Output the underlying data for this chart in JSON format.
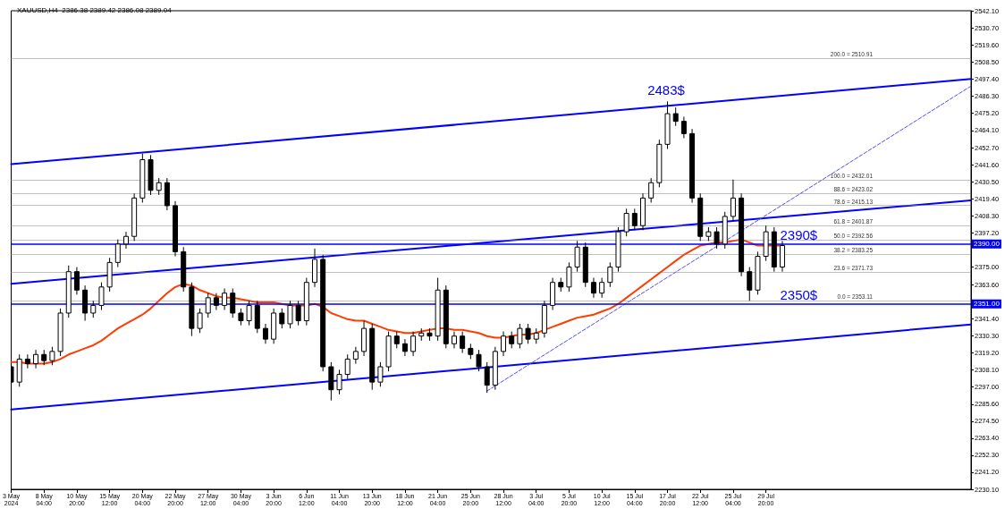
{
  "chart_data": {
    "type": "candlestick",
    "title": "XAUUSD,H4  2386.38 2389.42 2386.08 2389.04",
    "categories": [
      "3 May 2024",
      null,
      null,
      null,
      "8 May 04:00",
      null,
      null,
      null,
      "10 May 20:00",
      null,
      null,
      null,
      "15 May 12:00",
      null,
      null,
      null,
      "20 May 04:00",
      null,
      null,
      null,
      "22 May 20:00",
      null,
      null,
      null,
      "27 May 12:00",
      null,
      null,
      null,
      "30 May 04:00",
      null,
      null,
      null,
      "3 Jun 20:00",
      null,
      null,
      null,
      "6 Jun 12:00",
      null,
      null,
      null,
      "11 Jun 04:00",
      null,
      null,
      null,
      "13 Jun 20:00",
      null,
      null,
      null,
      "18 Jun 12:00",
      null,
      null,
      null,
      "21 Jun 04:00",
      null,
      null,
      null,
      "25 Jun 20:00",
      null,
      null,
      null,
      "28 Jun 12:00",
      null,
      null,
      null,
      "3 Jul 04:00",
      null,
      null,
      null,
      "5 Jul 20:00",
      null,
      null,
      null,
      "10 Jul 12:00",
      null,
      null,
      null,
      "15 Jul 04:00",
      null,
      null,
      null,
      "17 Jul 20:00",
      null,
      null,
      null,
      "22 Jul 12:00",
      null,
      null,
      null,
      "25 Jul 04:00",
      null,
      null,
      null,
      "29 Jul 20:00",
      null,
      null,
      null,
      null,
      null,
      null,
      null,
      null,
      null,
      null,
      null,
      null,
      null,
      null,
      null,
      null,
      null,
      null,
      null,
      null,
      null,
      null,
      null,
      null,
      null
    ],
    "ylim": [
      2230.1,
      2542.1
    ],
    "yticks": [
      {
        "value": 2230.1,
        "label": "2230.10"
      },
      {
        "value": 2241.2,
        "label": "2241.20"
      },
      {
        "value": 2252.3,
        "label": "2252.30"
      },
      {
        "value": 2263.4,
        "label": "2263.40"
      },
      {
        "value": 2274.5,
        "label": "2274.50"
      },
      {
        "value": 2285.6,
        "label": "2285.60"
      },
      {
        "value": 2297,
        "label": "2297.00"
      },
      {
        "value": 2308.1,
        "label": "2308.10"
      },
      {
        "value": 2319.2,
        "label": "2319.20"
      },
      {
        "value": 2330.3,
        "label": "2330.30"
      },
      {
        "value": 2341.4,
        "label": "2341.40"
      },
      {
        "value": 2363.6,
        "label": "2363.60"
      },
      {
        "value": 2375,
        "label": "2375.00"
      },
      {
        "value": 2397.2,
        "label": "2397.20"
      },
      {
        "value": 2408.3,
        "label": "2408.30"
      },
      {
        "value": 2419.4,
        "label": "2419.40"
      },
      {
        "value": 2430.5,
        "label": "2430.50"
      },
      {
        "value": 2441.6,
        "label": "2441.60"
      },
      {
        "value": 2452.7,
        "label": "2452.70"
      },
      {
        "value": 2464.1,
        "label": "2464.10"
      },
      {
        "value": 2475.2,
        "label": "2475.20"
      },
      {
        "value": 2486.3,
        "label": "2486.30"
      },
      {
        "value": 2497.4,
        "label": "2497.40"
      },
      {
        "value": 2508.5,
        "label": "2508.50"
      },
      {
        "value": 2519.6,
        "label": "2519.60"
      },
      {
        "value": 2530.7,
        "label": "2530.70"
      },
      {
        "value": 2542.1,
        "label": "2542.10"
      }
    ],
    "series": [
      {
        "color": "#000000",
        "ohlc": [
          [
            2310,
            2312,
            2282,
            2300
          ],
          [
            2300,
            2318,
            2297,
            2315
          ],
          [
            2315,
            2318,
            2309,
            2312
          ],
          [
            2312,
            2321,
            2309,
            2318
          ],
          [
            2318,
            2321,
            2311,
            2314
          ],
          [
            2314,
            2323,
            2311,
            2320
          ],
          [
            2320,
            2348,
            2317,
            2345
          ],
          [
            2345,
            2376,
            2342,
            2372
          ],
          [
            2372,
            2375,
            2357,
            2360
          ],
          [
            2360,
            2363,
            2340,
            2345
          ],
          [
            2345,
            2353,
            2342,
            2350
          ],
          [
            2350,
            2365,
            2347,
            2362
          ],
          [
            2362,
            2381,
            2359,
            2378
          ],
          [
            2378,
            2393,
            2375,
            2390
          ],
          [
            2390,
            2398,
            2387,
            2395
          ],
          [
            2395,
            2423,
            2392,
            2420
          ],
          [
            2420,
            2449,
            2417,
            2445
          ],
          [
            2445,
            2448,
            2422,
            2425
          ],
          [
            2425,
            2433,
            2422,
            2430
          ],
          [
            2430,
            2433,
            2412,
            2415
          ],
          [
            2415,
            2418,
            2382,
            2385
          ],
          [
            2385,
            2388,
            2359,
            2362
          ],
          [
            2362,
            2365,
            2330,
            2335
          ],
          [
            2335,
            2348,
            2332,
            2345
          ],
          [
            2345,
            2358,
            2342,
            2355
          ],
          [
            2355,
            2358,
            2347,
            2350
          ],
          [
            2350,
            2361,
            2347,
            2358
          ],
          [
            2358,
            2361,
            2342,
            2345
          ],
          [
            2345,
            2348,
            2337,
            2340
          ],
          [
            2340,
            2353,
            2337,
            2350
          ],
          [
            2350,
            2353,
            2332,
            2335
          ],
          [
            2335,
            2338,
            2325,
            2328
          ],
          [
            2328,
            2348,
            2325,
            2345
          ],
          [
            2345,
            2348,
            2335,
            2338
          ],
          [
            2338,
            2353,
            2335,
            2350
          ],
          [
            2350,
            2353,
            2337,
            2340
          ],
          [
            2340,
            2368,
            2337,
            2365
          ],
          [
            2365,
            2387,
            2362,
            2380
          ],
          [
            2380,
            2383,
            2307,
            2310
          ],
          [
            2310,
            2313,
            2288,
            2295
          ],
          [
            2295,
            2308,
            2292,
            2305
          ],
          [
            2305,
            2318,
            2302,
            2315
          ],
          [
            2315,
            2323,
            2312,
            2320
          ],
          [
            2320,
            2340,
            2317,
            2335
          ],
          [
            2335,
            2338,
            2295,
            2300
          ],
          [
            2300,
            2313,
            2297,
            2310
          ],
          [
            2310,
            2333,
            2307,
            2330
          ],
          [
            2330,
            2333,
            2322,
            2325
          ],
          [
            2325,
            2328,
            2317,
            2320
          ],
          [
            2320,
            2333,
            2317,
            2330
          ],
          [
            2330,
            2335,
            2327,
            2332
          ],
          [
            2332,
            2335,
            2327,
            2330
          ],
          [
            2330,
            2368,
            2327,
            2360
          ],
          [
            2360,
            2363,
            2322,
            2325
          ],
          [
            2325,
            2333,
            2322,
            2330
          ],
          [
            2330,
            2333,
            2319,
            2322
          ],
          [
            2322,
            2325,
            2315,
            2318
          ],
          [
            2318,
            2321,
            2307,
            2310
          ],
          [
            2310,
            2313,
            2293,
            2298
          ],
          [
            2298,
            2323,
            2295,
            2320
          ],
          [
            2320,
            2333,
            2317,
            2330
          ],
          [
            2330,
            2333,
            2322,
            2325
          ],
          [
            2325,
            2338,
            2322,
            2335
          ],
          [
            2335,
            2338,
            2325,
            2328
          ],
          [
            2328,
            2335,
            2325,
            2332
          ],
          [
            2332,
            2353,
            2329,
            2350
          ],
          [
            2350,
            2368,
            2347,
            2365
          ],
          [
            2365,
            2368,
            2359,
            2362
          ],
          [
            2362,
            2378,
            2359,
            2375
          ],
          [
            2375,
            2392,
            2372,
            2388
          ],
          [
            2388,
            2391,
            2362,
            2365
          ],
          [
            2365,
            2368,
            2355,
            2358
          ],
          [
            2358,
            2368,
            2355,
            2365
          ],
          [
            2365,
            2378,
            2362,
            2375
          ],
          [
            2375,
            2401,
            2372,
            2398
          ],
          [
            2398,
            2413,
            2395,
            2410
          ],
          [
            2410,
            2413,
            2399,
            2402
          ],
          [
            2402,
            2423,
            2399,
            2420
          ],
          [
            2420,
            2433,
            2417,
            2430
          ],
          [
            2430,
            2458,
            2427,
            2455
          ],
          [
            2455,
            2483,
            2452,
            2475
          ],
          [
            2475,
            2479,
            2467,
            2470
          ],
          [
            2470,
            2473,
            2459,
            2462
          ],
          [
            2462,
            2465,
            2417,
            2420
          ],
          [
            2420,
            2423,
            2392,
            2395
          ],
          [
            2395,
            2401,
            2392,
            2398
          ],
          [
            2398,
            2401,
            2387,
            2390
          ],
          [
            2390,
            2411,
            2387,
            2408
          ],
          [
            2408,
            2432,
            2405,
            2420
          ],
          [
            2420,
            2423,
            2369,
            2372
          ],
          [
            2372,
            2375,
            2353,
            2360
          ],
          [
            2360,
            2385,
            2357,
            2382
          ],
          [
            2382,
            2402,
            2379,
            2398
          ],
          [
            2398,
            2401,
            2372,
            2375
          ],
          [
            2375,
            2392,
            2372,
            2389
          ],
          null,
          null,
          null,
          null,
          null,
          null,
          null,
          null,
          null,
          null,
          null,
          null,
          null,
          null,
          null,
          null,
          null,
          null,
          null,
          null,
          null,
          null,
          null
        ]
      },
      {
        "type": "line",
        "color": "#ff3c00",
        "values": [
          2313,
          2313,
          2312,
          2312,
          2312,
          2313,
          2315,
          2318,
          2320,
          2322,
          2324,
          2327,
          2331,
          2335,
          2338,
          2341,
          2344,
          2348,
          2353,
          2358,
          2362,
          2364,
          2363,
          2360,
          2358,
          2356,
          2355,
          2355,
          2354,
          2353,
          2352,
          2352,
          2352,
          2351,
          2350,
          2350,
          2350,
          2351,
          2349,
          2345,
          2343,
          2341,
          2340,
          2340,
          2338,
          2336,
          2334,
          2333,
          2332,
          2332,
          2333,
          2334,
          2335,
          2335,
          2334,
          2334,
          2333,
          2332,
          2330,
          2329,
          2329,
          2330,
          2331,
          2331,
          2332,
          2334,
          2336,
          2338,
          2340,
          2342,
          2343,
          2344,
          2346,
          2348,
          2351,
          2355,
          2359,
          2363,
          2367,
          2371,
          2375,
          2379,
          2383,
          2386,
          2389,
          2390,
          2391,
          2391,
          2392,
          2393,
          2391,
          2389,
          2389,
          2389,
          2389,
          null,
          null,
          null,
          null,
          null,
          null,
          null,
          null,
          null,
          null,
          null,
          null,
          null,
          null,
          null,
          null,
          null,
          null,
          null,
          null,
          null,
          null,
          null
        ]
      },
      {
        "type": "line",
        "color": "#0000ff",
        "values": [
          2442.1,
          null,
          null,
          null,
          null,
          null,
          null,
          null,
          null,
          null,
          null,
          null,
          null,
          null,
          null,
          null,
          null,
          null,
          null,
          null,
          null,
          null,
          null,
          null,
          null,
          null,
          null,
          null,
          null,
          null,
          null,
          null,
          null,
          null,
          null,
          null,
          null,
          null,
          null,
          null,
          null,
          null,
          null,
          null,
          null,
          null,
          null,
          null,
          null,
          null,
          null,
          null,
          null,
          null,
          null,
          null,
          null,
          null,
          null,
          null,
          null,
          null,
          null,
          null,
          null,
          null,
          null,
          null,
          null,
          null,
          null,
          null,
          null,
          null,
          null,
          null,
          null,
          null,
          null,
          null,
          null,
          null,
          null,
          null,
          null,
          null,
          null,
          null,
          null,
          null,
          null,
          null,
          null,
          null,
          null,
          null,
          null,
          null,
          null,
          null,
          null,
          null,
          null,
          null,
          null,
          null,
          null,
          null,
          null,
          null,
          null,
          null,
          null,
          null,
          null,
          null,
          null,
          2497.6
        ]
      },
      {
        "type": "line",
        "color": "#0000ff",
        "values": [
          2364.1,
          null,
          null,
          null,
          null,
          null,
          null,
          null,
          null,
          null,
          null,
          null,
          null,
          null,
          null,
          null,
          null,
          null,
          null,
          null,
          null,
          null,
          null,
          null,
          null,
          null,
          null,
          null,
          null,
          null,
          null,
          null,
          null,
          null,
          null,
          null,
          null,
          null,
          null,
          null,
          null,
          null,
          null,
          null,
          null,
          null,
          null,
          null,
          null,
          null,
          null,
          null,
          null,
          null,
          null,
          null,
          null,
          null,
          null,
          null,
          null,
          null,
          null,
          null,
          null,
          null,
          null,
          null,
          null,
          null,
          null,
          null,
          null,
          null,
          null,
          null,
          null,
          null,
          null,
          null,
          null,
          null,
          null,
          null,
          null,
          null,
          null,
          null,
          null,
          null,
          null,
          null,
          null,
          null,
          null,
          null,
          null,
          null,
          null,
          null,
          null,
          null,
          null,
          null,
          null,
          null,
          null,
          null,
          null,
          null,
          null,
          null,
          null,
          null,
          null,
          null,
          null,
          2418.5
        ]
      },
      {
        "type": "line",
        "color": "#0000ff",
        "values": [
          2282.1,
          null,
          null,
          null,
          null,
          null,
          null,
          null,
          null,
          null,
          null,
          null,
          null,
          null,
          null,
          null,
          null,
          null,
          null,
          null,
          null,
          null,
          null,
          null,
          null,
          null,
          null,
          null,
          null,
          null,
          null,
          null,
          null,
          null,
          null,
          null,
          null,
          null,
          null,
          null,
          null,
          null,
          null,
          null,
          null,
          null,
          null,
          null,
          null,
          null,
          null,
          null,
          null,
          null,
          null,
          null,
          null,
          null,
          null,
          null,
          null,
          null,
          null,
          null,
          null,
          null,
          null,
          null,
          null,
          null,
          null,
          null,
          null,
          null,
          null,
          null,
          null,
          null,
          null,
          null,
          null,
          null,
          null,
          null,
          null,
          null,
          null,
          null,
          null,
          null,
          null,
          null,
          null,
          null,
          null,
          null,
          null,
          null,
          null,
          null,
          null,
          null,
          null,
          null,
          null,
          null,
          null,
          null,
          null,
          null,
          null,
          null,
          null,
          null,
          null,
          null,
          null,
          2337.6
        ]
      },
      {
        "type": "line",
        "color": "#4d4dff",
        "line_style": "dashed",
        "values": [
          null,
          null,
          null,
          null,
          null,
          null,
          null,
          null,
          null,
          null,
          null,
          null,
          null,
          null,
          null,
          null,
          null,
          null,
          null,
          null,
          null,
          null,
          null,
          null,
          null,
          null,
          null,
          null,
          null,
          null,
          null,
          null,
          null,
          null,
          null,
          null,
          null,
          null,
          null,
          null,
          null,
          null,
          null,
          null,
          null,
          null,
          null,
          null,
          null,
          null,
          null,
          null,
          null,
          null,
          null,
          null,
          null,
          null,
          2294.2,
          null,
          null,
          null,
          null,
          null,
          null,
          null,
          null,
          null,
          null,
          null,
          null,
          null,
          null,
          null,
          null,
          null,
          null,
          null,
          null,
          null,
          null,
          null,
          null,
          null,
          null,
          null,
          null,
          null,
          null,
          null,
          null,
          null,
          null,
          null,
          null,
          null,
          null,
          null,
          null,
          null,
          null,
          null,
          null,
          null,
          null,
          null,
          null,
          null,
          null,
          null,
          null,
          null,
          null,
          null,
          null,
          null,
          null,
          2493
        ]
      }
    ],
    "ref_lines": [
      {
        "axis": "y",
        "value": 2390,
        "label": "2390.00",
        "color": "#0000ff",
        "line_style": "solid"
      },
      {
        "axis": "y",
        "value": 2351,
        "label": "2351.00",
        "color": "#0000ff",
        "line_style": "solid"
      },
      {
        "axis": "y",
        "value": 2510.91,
        "label": "200.0 = 2510.91",
        "color": "#808080",
        "line_style": "dotted"
      },
      {
        "axis": "y",
        "value": 2432.01,
        "label": "100.0 = 2432.01",
        "color": "#808080",
        "line_style": "dotted"
      },
      {
        "axis": "y",
        "value": 2423.02,
        "label": "88.6 = 2423.02",
        "color": "#808080",
        "line_style": "dotted"
      },
      {
        "axis": "y",
        "value": 2415.13,
        "label": "78.6 = 2415.13",
        "color": "#808080",
        "line_style": "dotted"
      },
      {
        "axis": "y",
        "value": 2401.87,
        "label": "61.8 = 2401.87",
        "color": "#808080",
        "line_style": "dotted"
      },
      {
        "axis": "y",
        "value": 2392.56,
        "label": "50.0 = 2392.56",
        "color": "#808080",
        "line_style": "dotted"
      },
      {
        "axis": "y",
        "value": 2383.25,
        "label": "38.2 = 2383.25",
        "color": "#808080",
        "line_style": "dotted"
      },
      {
        "axis": "y",
        "value": 2371.73,
        "label": "23.6 = 2371.73",
        "color": "#808080",
        "line_style": "dotted"
      },
      {
        "axis": "y",
        "value": 2353.11,
        "label": "0.0 = 2353.11",
        "color": "#808080",
        "line_style": "dotted"
      }
    ],
    "annotations": [
      "2483$",
      {
        "text": "2390$",
        "y": 2390
      },
      {
        "text": "2350$",
        "y": 2351
      }
    ]
  }
}
